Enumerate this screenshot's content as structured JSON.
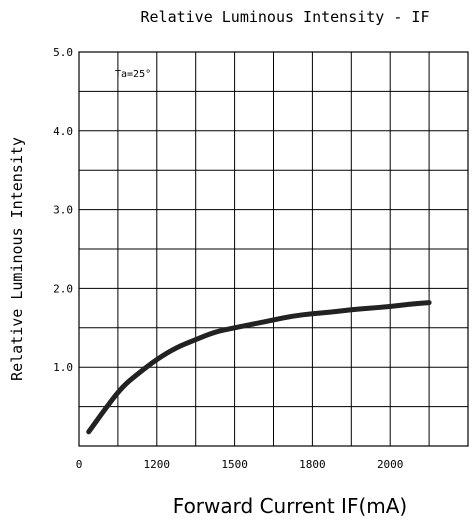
{
  "chart_data": {
    "type": "line",
    "title": "Relative Luminous Intensity - IF",
    "xlabel": "Forward Current IF(mA)",
    "ylabel": "Relative Luminous Intensity",
    "annotation": "Ta=25°",
    "grid": true,
    "x_tick_labels": [
      "0",
      "1200",
      "1500",
      "1800",
      "2000"
    ],
    "y_tick_labels": [
      "1.0",
      "2.0",
      "3.0",
      "4.0",
      "5.0"
    ],
    "ylim": [
      0,
      5.0
    ],
    "series": [
      {
        "values_by_grid_column": [
          [
            0.25,
            0.18
          ],
          [
            0.6,
            0.42
          ],
          [
            1.1,
            0.75
          ],
          [
            1.6,
            0.95
          ],
          [
            2.0,
            1.1
          ],
          [
            2.5,
            1.25
          ],
          [
            3.0,
            1.35
          ],
          [
            3.5,
            1.45
          ],
          [
            4.0,
            1.5
          ],
          [
            4.5,
            1.55
          ],
          [
            5.0,
            1.6
          ],
          [
            5.5,
            1.65
          ],
          [
            6.0,
            1.68
          ],
          [
            6.5,
            1.7
          ],
          [
            7.0,
            1.73
          ],
          [
            7.5,
            1.75
          ],
          [
            8.0,
            1.77
          ],
          [
            8.5,
            1.8
          ],
          [
            9.0,
            1.82
          ]
        ]
      }
    ],
    "line_color": "#222222",
    "grid_color": "#000000"
  }
}
